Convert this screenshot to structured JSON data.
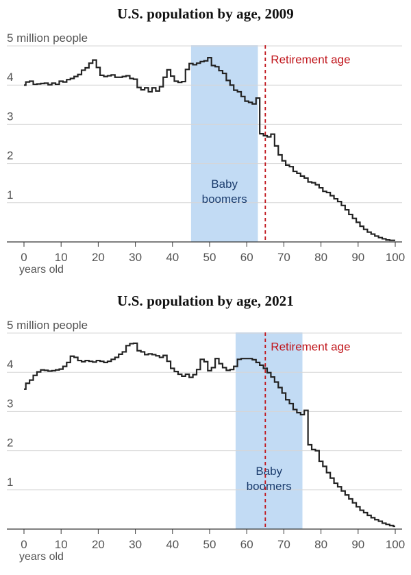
{
  "chart_data": [
    {
      "type": "line",
      "title": "U.S. population by age, 2009",
      "ylabel_top": "5 million people",
      "xlabel": "years old",
      "x_ticks": [
        0,
        10,
        20,
        30,
        40,
        50,
        60,
        70,
        80,
        90,
        100
      ],
      "y_ticks": [
        1,
        2,
        3,
        4
      ],
      "xlim": [
        0,
        100
      ],
      "ylim": [
        0,
        5
      ],
      "grid": true,
      "line_color": "#222222",
      "shade": {
        "label_line1": "Baby",
        "label_line2": "boomers",
        "from_age": 45,
        "to_age": 63,
        "color": "#c2dbf4",
        "label_color": "#1c3d6e"
      },
      "retirement": {
        "label": "Retirement age",
        "age": 65,
        "color": "#c0151b"
      },
      "series": [
        {
          "x": [
            0,
            1,
            2,
            3,
            4,
            5,
            6,
            7,
            8,
            9,
            10,
            11,
            12,
            13,
            14,
            15,
            16,
            17,
            18,
            19,
            20,
            21,
            22,
            23,
            24,
            25,
            26,
            27,
            28,
            29,
            30,
            31,
            32,
            33,
            34,
            35,
            36,
            37,
            38,
            39,
            40,
            41,
            42,
            43,
            44,
            45,
            46,
            47,
            48,
            49,
            50,
            51,
            52,
            53,
            54,
            55,
            56,
            57,
            58,
            59,
            60,
            61,
            62,
            63,
            64,
            65,
            66,
            67,
            68,
            69,
            70,
            71,
            72,
            73,
            74,
            75,
            76,
            77,
            78,
            79,
            80,
            81,
            82,
            83,
            84,
            85,
            86,
            87,
            88,
            89,
            90,
            91,
            92,
            93,
            94,
            95,
            96,
            97,
            98,
            99,
            100
          ],
          "y": [
            4.0,
            4.08,
            4.1,
            4.02,
            4.03,
            4.04,
            4.05,
            4.01,
            4.05,
            4.02,
            4.1,
            4.08,
            4.14,
            4.17,
            4.22,
            4.27,
            4.38,
            4.44,
            4.56,
            4.64,
            4.45,
            4.25,
            4.22,
            4.24,
            4.26,
            4.2,
            4.2,
            4.22,
            4.24,
            4.17,
            4.15,
            3.94,
            3.88,
            3.93,
            3.83,
            3.93,
            3.85,
            3.96,
            4.2,
            4.39,
            4.23,
            4.1,
            4.07,
            4.09,
            4.4,
            4.55,
            4.52,
            4.56,
            4.6,
            4.62,
            4.7,
            4.5,
            4.47,
            4.37,
            4.3,
            4.12,
            4.0,
            3.87,
            3.83,
            3.71,
            3.59,
            3.56,
            3.52,
            3.67,
            2.76,
            2.71,
            2.68,
            2.75,
            2.45,
            2.22,
            2.07,
            1.96,
            1.92,
            1.8,
            1.75,
            1.68,
            1.63,
            1.53,
            1.51,
            1.46,
            1.38,
            1.29,
            1.26,
            1.18,
            1.1,
            1.03,
            0.93,
            0.82,
            0.7,
            0.6,
            0.5,
            0.4,
            0.32,
            0.25,
            0.2,
            0.15,
            0.11,
            0.08,
            0.05,
            0.04,
            0.04
          ]
        }
      ]
    },
    {
      "type": "line",
      "title": "U.S. population by age, 2021",
      "ylabel_top": "5 million people",
      "xlabel": "years old",
      "x_ticks": [
        0,
        10,
        20,
        30,
        40,
        50,
        60,
        70,
        80,
        90,
        100
      ],
      "y_ticks": [
        1,
        2,
        3,
        4
      ],
      "xlim": [
        0,
        100
      ],
      "ylim": [
        0,
        5
      ],
      "grid": true,
      "line_color": "#222222",
      "shade": {
        "label_line1": "Baby",
        "label_line2": "boomers",
        "from_age": 57,
        "to_age": 75,
        "color": "#c2dbf4",
        "label_color": "#1c3d6e"
      },
      "retirement": {
        "label": "Retirement age",
        "age": 65,
        "color": "#c0151b"
      },
      "series": [
        {
          "x": [
            0,
            1,
            2,
            3,
            4,
            5,
            6,
            7,
            8,
            9,
            10,
            11,
            12,
            13,
            14,
            15,
            16,
            17,
            18,
            19,
            20,
            21,
            22,
            23,
            24,
            25,
            26,
            27,
            28,
            29,
            30,
            31,
            32,
            33,
            34,
            35,
            36,
            37,
            38,
            39,
            40,
            41,
            42,
            43,
            44,
            45,
            46,
            47,
            48,
            49,
            50,
            51,
            52,
            53,
            54,
            55,
            56,
            57,
            58,
            59,
            60,
            61,
            62,
            63,
            64,
            65,
            66,
            67,
            68,
            69,
            70,
            71,
            72,
            73,
            74,
            75,
            76,
            77,
            78,
            79,
            80,
            81,
            82,
            83,
            84,
            85,
            86,
            87,
            88,
            89,
            90,
            91,
            92,
            93,
            94,
            95,
            96,
            97,
            98,
            99,
            100
          ],
          "y": [
            3.57,
            3.72,
            3.8,
            3.92,
            4.01,
            4.06,
            4.05,
            4.03,
            4.04,
            4.06,
            4.08,
            4.15,
            4.25,
            4.41,
            4.38,
            4.3,
            4.27,
            4.3,
            4.28,
            4.26,
            4.3,
            4.28,
            4.25,
            4.28,
            4.33,
            4.38,
            4.46,
            4.52,
            4.68,
            4.73,
            4.74,
            4.55,
            4.52,
            4.45,
            4.47,
            4.45,
            4.42,
            4.38,
            4.43,
            4.28,
            4.1,
            4.02,
            3.95,
            3.9,
            3.95,
            3.87,
            3.94,
            4.07,
            4.33,
            4.27,
            4.04,
            4.12,
            4.35,
            4.22,
            4.12,
            4.05,
            4.07,
            4.15,
            4.33,
            4.35,
            4.35,
            4.35,
            4.32,
            4.25,
            4.18,
            4.1,
            3.99,
            3.88,
            3.75,
            3.61,
            3.47,
            3.3,
            3.2,
            3.05,
            2.97,
            2.92,
            3.03,
            2.15,
            2.03,
            2.0,
            1.73,
            1.6,
            1.44,
            1.3,
            1.17,
            1.08,
            0.97,
            0.87,
            0.77,
            0.67,
            0.57,
            0.48,
            0.42,
            0.35,
            0.29,
            0.24,
            0.2,
            0.15,
            0.12,
            0.09,
            0.07
          ]
        }
      ]
    }
  ]
}
